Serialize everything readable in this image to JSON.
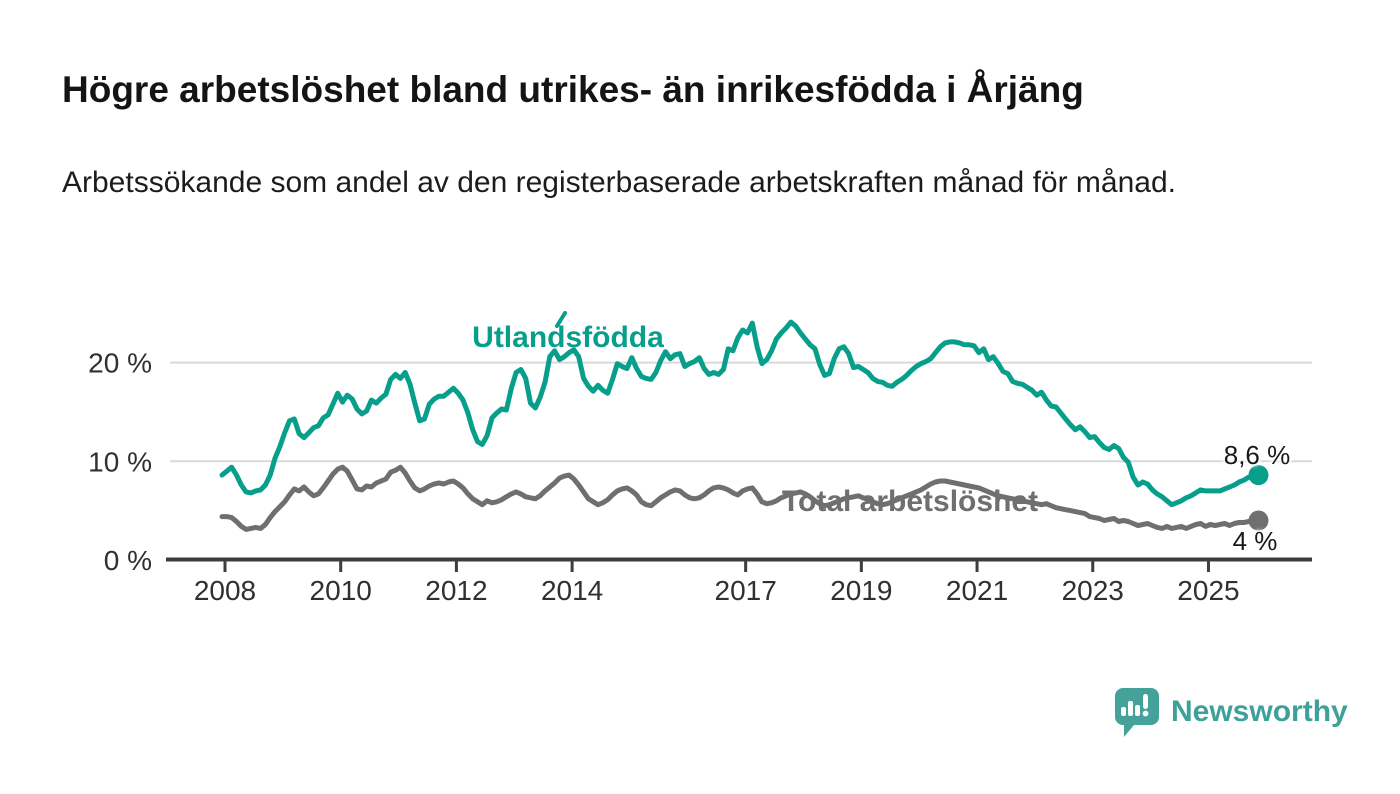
{
  "chart_data": {
    "type": "line",
    "title": "Högre arbetslöshet bland utrikes- än inrikesfödda i Årjäng",
    "subtitle": "Arbetssökande som andel av den registerbaserade arbetskraften månad för månad.",
    "grid": "horizontal",
    "legend": "inline-labels",
    "x_axis": {
      "tick_years": [
        2008,
        2010,
        2012,
        2014,
        2017,
        2019,
        2021,
        2023,
        2025
      ],
      "tick_labels": [
        "2008",
        "2010",
        "2012",
        "2014",
        "2017",
        "2019",
        "2021",
        "2023",
        "2025"
      ],
      "range": [
        2008,
        2026.2
      ]
    },
    "y_axis": {
      "tick_values": [
        0,
        10,
        20
      ],
      "tick_labels": [
        "0 %",
        "10 %",
        "20 %"
      ],
      "range": [
        0,
        24.5
      ],
      "unit": "%"
    },
    "series": [
      {
        "name": "Utlandsfödda",
        "color": "#089e8c",
        "start": 2008,
        "points_per_year": 12,
        "end_value": 8.6,
        "end_label": "8,6 %",
        "values": [
          8.6,
          9.0,
          9.4,
          8.6,
          7.6,
          6.9,
          6.8,
          7.0,
          7.1,
          7.6,
          8.6,
          10.3,
          11.5,
          12.9,
          14.1,
          14.3,
          12.8,
          12.4,
          12.9,
          13.4,
          13.6,
          14.4,
          14.7,
          15.8,
          16.9,
          16.0,
          16.7,
          16.3,
          15.3,
          14.8,
          15.1,
          16.2,
          15.9,
          16.4,
          16.8,
          18.3,
          18.8,
          18.4,
          19.0,
          17.8,
          15.9,
          14.1,
          14.3,
          15.8,
          16.3,
          16.6,
          16.6,
          17.0,
          17.4,
          16.9,
          16.2,
          14.9,
          13.2,
          12.0,
          11.7,
          12.6,
          14.4,
          14.9,
          15.3,
          15.2,
          17.4,
          19.0,
          19.3,
          18.4,
          15.9,
          15.4,
          16.5,
          18.0,
          20.6,
          21.2,
          20.3,
          20.6,
          21.0,
          21.3,
          20.6,
          18.4,
          17.6,
          17.1,
          17.7,
          17.2,
          16.9,
          18.3,
          19.9,
          19.6,
          19.4,
          20.5,
          19.4,
          18.6,
          18.4,
          18.3,
          19.0,
          20.2,
          21.1,
          20.4,
          20.8,
          20.9,
          19.6,
          19.9,
          20.1,
          20.5,
          19.4,
          18.8,
          19.0,
          18.8,
          19.3,
          21.4,
          21.2,
          22.5,
          23.3,
          23.0,
          24.0,
          21.6,
          19.9,
          20.3,
          21.2,
          22.4,
          23.0,
          23.5,
          24.1,
          23.7,
          23.0,
          22.4,
          21.8,
          21.4,
          19.8,
          18.7,
          18.9,
          20.4,
          21.4,
          21.6,
          20.9,
          19.5,
          19.6,
          19.3,
          19.0,
          18.4,
          18.1,
          18.0,
          17.7,
          17.6,
          18.0,
          18.3,
          18.7,
          19.2,
          19.6,
          19.9,
          20.1,
          20.4,
          21.0,
          21.6,
          22.0,
          22.1,
          22.1,
          22.0,
          21.8,
          21.8,
          21.7,
          21.0,
          21.4,
          20.3,
          20.6,
          19.9,
          19.1,
          18.9,
          18.1,
          17.9,
          17.8,
          17.5,
          17.2,
          16.7,
          17.0,
          16.2,
          15.6,
          15.5,
          14.9,
          14.3,
          13.7,
          13.2,
          13.5,
          13.0,
          12.4,
          12.5,
          11.9,
          11.4,
          11.2,
          11.6,
          11.3,
          10.4,
          9.9,
          8.4,
          7.6,
          7.9,
          7.7,
          7.1,
          6.7,
          6.4,
          6.0,
          5.6,
          5.8,
          6.0,
          6.3,
          6.5,
          6.8,
          7.1,
          7.0,
          7.0,
          7.0,
          7.0,
          7.2,
          7.4,
          7.6,
          7.9,
          8.1,
          8.4,
          8.5,
          8.6
        ]
      },
      {
        "name": "Total arbetslöshet",
        "color": "#6f6f6f",
        "start": 2008,
        "points_per_year": 12,
        "end_value": 4.0,
        "end_label": "4 %",
        "values": [
          4.4,
          4.4,
          4.3,
          3.9,
          3.4,
          3.1,
          3.2,
          3.3,
          3.2,
          3.6,
          4.3,
          4.9,
          5.4,
          5.9,
          6.6,
          7.2,
          7.0,
          7.4,
          6.9,
          6.5,
          6.7,
          7.3,
          8.0,
          8.7,
          9.2,
          9.4,
          9.0,
          8.1,
          7.2,
          7.1,
          7.5,
          7.4,
          7.8,
          8.0,
          8.2,
          8.9,
          9.1,
          9.4,
          8.8,
          8.0,
          7.3,
          7.0,
          7.2,
          7.5,
          7.7,
          7.8,
          7.7,
          7.9,
          8.0,
          7.7,
          7.3,
          6.7,
          6.2,
          5.9,
          5.6,
          6.0,
          5.8,
          5.9,
          6.1,
          6.4,
          6.7,
          6.9,
          6.7,
          6.4,
          6.3,
          6.2,
          6.5,
          7.0,
          7.4,
          7.8,
          8.3,
          8.5,
          8.6,
          8.2,
          7.6,
          6.9,
          6.2,
          5.9,
          5.6,
          5.8,
          6.1,
          6.6,
          7.0,
          7.2,
          7.3,
          7.0,
          6.6,
          5.9,
          5.6,
          5.5,
          5.9,
          6.3,
          6.6,
          6.9,
          7.1,
          7.0,
          6.6,
          6.3,
          6.2,
          6.3,
          6.6,
          7.0,
          7.3,
          7.4,
          7.3,
          7.1,
          6.8,
          6.6,
          7.0,
          7.2,
          7.3,
          6.7,
          5.9,
          5.7,
          5.8,
          6.0,
          6.3,
          6.5,
          6.7,
          6.8,
          6.9,
          6.7,
          6.4,
          6.0,
          5.7,
          5.5,
          5.6,
          5.8,
          6.0,
          6.2,
          6.3,
          6.4,
          6.5,
          6.3,
          6.1,
          5.9,
          5.7,
          5.6,
          5.7,
          5.9,
          6.1,
          6.3,
          6.5,
          6.7,
          6.9,
          7.1,
          7.4,
          7.7,
          7.9,
          8.0,
          8.0,
          7.9,
          7.8,
          7.7,
          7.6,
          7.5,
          7.4,
          7.3,
          7.1,
          6.9,
          6.7,
          6.5,
          6.4,
          6.3,
          6.2,
          6.1,
          6.0,
          5.9,
          5.8,
          5.7,
          5.6,
          5.7,
          5.5,
          5.3,
          5.2,
          5.1,
          5.0,
          4.9,
          4.8,
          4.7,
          4.4,
          4.3,
          4.2,
          4.0,
          4.1,
          4.2,
          3.9,
          4.0,
          3.9,
          3.7,
          3.5,
          3.6,
          3.7,
          3.5,
          3.3,
          3.2,
          3.4,
          3.2,
          3.3,
          3.4,
          3.2,
          3.4,
          3.6,
          3.7,
          3.4,
          3.6,
          3.5,
          3.6,
          3.7,
          3.5,
          3.7,
          3.8,
          3.8,
          3.9,
          4.0,
          4.0
        ]
      }
    ]
  },
  "branding": {
    "name": "Newsworthy",
    "icon": "speech-bubble-bar-chart-icon",
    "color": "#3da19a"
  }
}
